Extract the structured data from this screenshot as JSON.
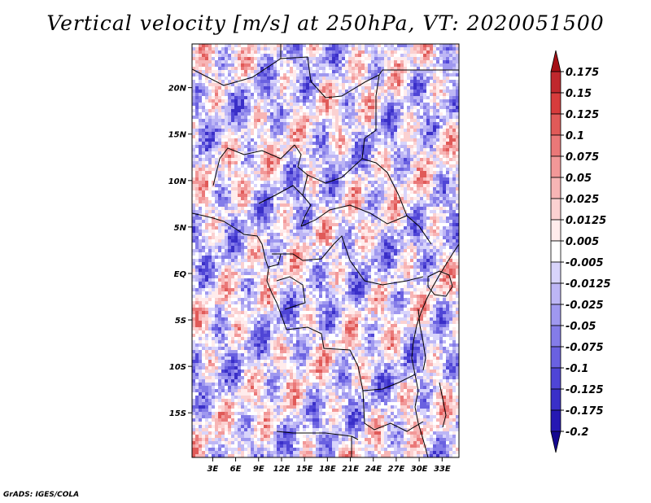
{
  "chart_data": {
    "type": "heatmap",
    "title": "Vertical velocity [m/s] at 250hPa, VT: 2020051500",
    "xlabel": "",
    "ylabel": "",
    "x_ticks": [
      "3E",
      "6E",
      "9E",
      "12E",
      "15E",
      "18E",
      "21E",
      "24E",
      "27E",
      "30E",
      "33E"
    ],
    "x_tick_values": [
      3,
      6,
      9,
      12,
      15,
      18,
      21,
      24,
      27,
      30,
      33
    ],
    "y_ticks": [
      "20N",
      "15N",
      "10N",
      "5N",
      "EQ",
      "5S",
      "10S",
      "15S"
    ],
    "y_tick_values": [
      20,
      15,
      10,
      5,
      0,
      -5,
      -10,
      -15
    ],
    "xlim": [
      0.3,
      35.2
    ],
    "ylim": [
      -19.8,
      24.7
    ],
    "colorbar": {
      "levels": [
        "0.175",
        "0.15",
        "0.125",
        "0.1",
        "0.075",
        "0.05",
        "0.025",
        "0.0125",
        "0.005",
        "-0.005",
        "-0.0125",
        "-0.025",
        "-0.05",
        "-0.075",
        "-0.1",
        "-0.125",
        "-0.175",
        "-0.2"
      ],
      "colors": [
        "#a50f15",
        "#c0282d",
        "#d73c3c",
        "#e05a58",
        "#ea7878",
        "#f29898",
        "#f7b5b5",
        "#fbd1d1",
        "#ffecec",
        "#ffffff",
        "#d8d4fb",
        "#bdb6f5",
        "#9f98ef",
        "#847ce8",
        "#6a61e0",
        "#4f45d6",
        "#3a2fc8",
        "#2618b3",
        "#140890"
      ]
    }
  },
  "footer": "GrADS: IGES/COLA"
}
